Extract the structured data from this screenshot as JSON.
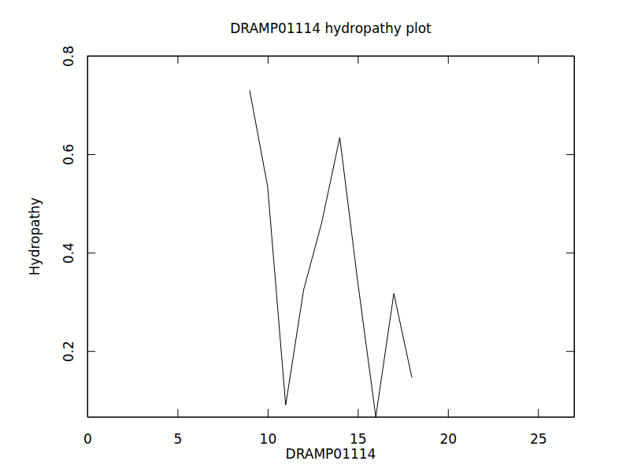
{
  "chart_data": {
    "type": "line",
    "title": "DRAMP01114 hydropathy plot",
    "x_label": "DRAMP01114",
    "y_label": "Hydropathy",
    "x": [
      9,
      10,
      11,
      12,
      13,
      14,
      15,
      16,
      17,
      18
    ],
    "values": [
      0.73,
      0.534,
      0.09,
      0.325,
      0.461,
      0.634,
      0.34,
      0.066,
      0.317,
      0.146
    ],
    "color": "#000000",
    "xlim": [
      0,
      27
    ],
    "xticks": [
      0,
      5,
      10,
      15,
      20,
      25
    ],
    "ylim": [
      0.066,
      0.8
    ],
    "yticks": [
      0.2,
      0.4,
      0.6,
      0.8
    ],
    "grid": false
  }
}
